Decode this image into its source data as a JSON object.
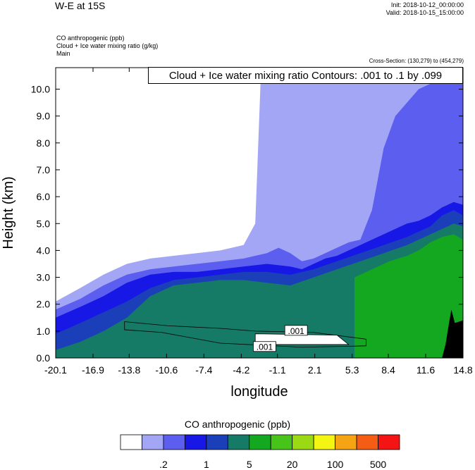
{
  "header": {
    "title": "W-E at 15S",
    "init": "Init: 2018-10-12_00:00:00",
    "valid": "Valid: 2018-10-15_15:00:00",
    "variables": [
      "CO anthropogenic   (ppb)",
      "Cloud + Ice water mixing ratio   (g/kg)",
      "Main"
    ],
    "cross_section": "Cross-Section: (130,279) to (454,279)",
    "contour_note": "Cloud + Ice water mixing ratio Contours: .001 to .1 by .099"
  },
  "chart_data": {
    "type": "heatmap",
    "title": "W-E at 15S",
    "xlabel": "longitude",
    "ylabel": "Height (km)",
    "xlim": [
      -20.1,
      14.8
    ],
    "ylim": [
      0.0,
      10.8
    ],
    "x_ticks": [
      -20.1,
      -16.9,
      -13.8,
      -10.6,
      -7.4,
      -4.2,
      -1.1,
      2.1,
      5.3,
      8.4,
      11.6,
      14.8
    ],
    "x_tick_labels": [
      "-20.1",
      "-16.9",
      "-13.8",
      "-10.6",
      "-7.4",
      "-4.2",
      "-1.1",
      "2.1",
      "5.3",
      "8.4",
      "11.6",
      "14.8"
    ],
    "y_ticks": [
      0,
      1,
      2,
      3,
      4,
      5,
      6,
      7,
      8,
      9,
      10
    ],
    "y_tick_labels": [
      "0.0",
      "1.0",
      "2.0",
      "3.0",
      "4.0",
      "5.0",
      "6.0",
      "7.0",
      "8.0",
      "9.0",
      "10.0"
    ],
    "contour_labels": [
      {
        "text": ".001",
        "x": 0.5,
        "y": 1.0
      },
      {
        "text": ".001",
        "x": -2.2,
        "y": 0.4
      }
    ],
    "bands": [
      {
        "level": 1,
        "color": "#a3a6f5",
        "x": [
          -20.1,
          -18,
          -16,
          -14,
          -12,
          -10,
          -8,
          -6,
          -4,
          -3,
          -2.5,
          -2,
          -1,
          0,
          1,
          2,
          3,
          4,
          5,
          6,
          8,
          10,
          11,
          12,
          13,
          14,
          14.8
        ],
        "y": [
          2.1,
          2.6,
          3.1,
          3.5,
          3.7,
          3.8,
          3.9,
          4.0,
          4.2,
          5.0,
          10.8,
          10.8,
          10.8,
          10.8,
          10.8,
          10.8,
          10.8,
          10.8,
          10.8,
          10.8,
          10.8,
          10.8,
          10.8,
          10.8,
          10.8,
          10.8,
          10.8
        ]
      },
      {
        "level": 2,
        "color": "#5c5ef0",
        "x": [
          -20.1,
          -18,
          -16,
          -14,
          -12,
          -10,
          -8,
          -6,
          -4,
          -3,
          -2,
          -1,
          0,
          1,
          2,
          3,
          4,
          5,
          6,
          7,
          8,
          9,
          10,
          11,
          12,
          13,
          14,
          14.8
        ],
        "y": [
          1.8,
          2.2,
          2.7,
          3.1,
          3.3,
          3.4,
          3.5,
          3.6,
          3.7,
          3.8,
          3.9,
          4.1,
          3.9,
          3.6,
          3.7,
          3.9,
          4.1,
          4.3,
          4.4,
          5.5,
          7.8,
          9.0,
          9.5,
          10.0,
          10.2,
          10.4,
          10.5,
          10.5
        ]
      },
      {
        "level": 3,
        "color": "#1717e6",
        "x": [
          -20.1,
          -18,
          -16,
          -14,
          -12,
          -10,
          -8,
          -6,
          -4,
          -2,
          0,
          1,
          2,
          3,
          4,
          5,
          6,
          7,
          8,
          9,
          10,
          11,
          12,
          13,
          14,
          14.8
        ],
        "y": [
          1.5,
          1.9,
          2.3,
          2.8,
          3.1,
          3.2,
          3.2,
          3.3,
          3.4,
          3.5,
          3.4,
          3.3,
          3.5,
          3.7,
          3.8,
          4.0,
          4.2,
          4.4,
          4.6,
          4.8,
          5.0,
          5.1,
          5.3,
          5.6,
          5.8,
          5.7
        ]
      },
      {
        "level": 4,
        "color": "#1a3fb8",
        "x": [
          -20.1,
          -18,
          -16,
          -14,
          -12,
          -10,
          -8,
          -6,
          -4,
          -2,
          0,
          2,
          4,
          6,
          8,
          10,
          12,
          13,
          14,
          14.8
        ],
        "y": [
          0.9,
          1.3,
          1.7,
          2.1,
          2.6,
          2.9,
          3.0,
          3.1,
          3.2,
          3.2,
          3.1,
          3.3,
          3.6,
          3.9,
          4.2,
          4.5,
          4.9,
          5.3,
          5.5,
          5.3
        ]
      },
      {
        "level": 5,
        "color": "#157a66",
        "x": [
          -20.1,
          -18,
          -16,
          -14,
          -12,
          -10,
          -8,
          -6,
          -4,
          -2,
          0,
          2,
          4,
          6,
          8,
          10,
          12,
          13,
          14,
          14.8
        ],
        "y": [
          0.3,
          0.6,
          1.0,
          1.5,
          2.3,
          2.7,
          2.8,
          2.9,
          2.9,
          2.8,
          2.7,
          3.0,
          3.3,
          3.6,
          3.9,
          4.2,
          4.6,
          4.8,
          5.0,
          4.9
        ]
      },
      {
        "level": 6,
        "color": "#14a820",
        "x": [
          5.5,
          7,
          8.5,
          10,
          11,
          12,
          13,
          14,
          14.8
        ],
        "y": [
          3.0,
          3.3,
          3.6,
          3.8,
          4.0,
          4.3,
          4.5,
          4.6,
          4.4
        ]
      }
    ],
    "colorbar": {
      "title": "CO anthropogenic  (ppb)",
      "colors": [
        "#ffffff",
        "#a3a6f5",
        "#5c5ef0",
        "#1717e6",
        "#1a3fb8",
        "#157a66",
        "#14a820",
        "#47c41a",
        "#9ad914",
        "#f5f514",
        "#f5a514",
        "#f55c14",
        "#f51414"
      ],
      "tick_labels": [
        ".2",
        "1",
        "5",
        "20",
        "100",
        "500"
      ]
    }
  }
}
